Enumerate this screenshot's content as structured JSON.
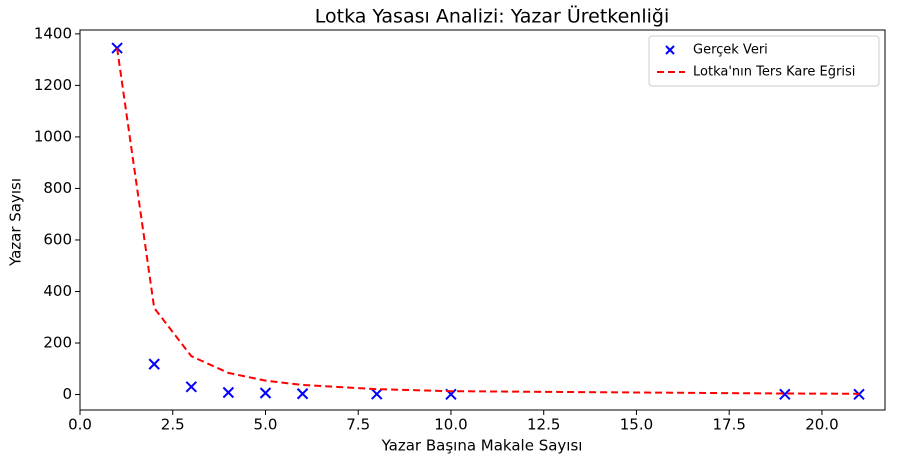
{
  "chart_data": {
    "type": "scatter",
    "title": "Lotka Yasası Analizi: Yazar Üretkenliği",
    "xlabel": "Yazar Başına Makale Sayısı",
    "ylabel": "Yazar Sayısı",
    "x": [
      1,
      2,
      3,
      4,
      5,
      6,
      8,
      10,
      19,
      21
    ],
    "series": [
      {
        "name": "Gerçek Veri",
        "type": "scatter",
        "color": "#0000ff",
        "values": [
          1345,
          118,
          30,
          8,
          6,
          3,
          2,
          1,
          1,
          1
        ]
      },
      {
        "name": "Lotka'nın Ters Kare Eğrisi",
        "type": "line",
        "color": "#ff0000",
        "dashed": true,
        "values": [
          1345,
          336,
          149,
          84,
          54,
          37,
          21,
          13,
          4,
          3
        ]
      }
    ],
    "xlim": [
      0,
      21.7
    ],
    "ylim": [
      -60,
      1415
    ],
    "xticks": [
      {
        "value": 0,
        "label": "0.0"
      },
      2.5,
      {
        "value": 5,
        "label": "5.0"
      },
      7.5,
      {
        "value": 10,
        "label": "10.0"
      },
      12.5,
      {
        "value": 15,
        "label": "15.0"
      },
      17.5,
      {
        "value": 20,
        "label": "20.0"
      }
    ],
    "yticks": [
      0,
      200,
      400,
      600,
      800,
      1000,
      1200,
      1400
    ],
    "grid": false,
    "legend": "upper right"
  }
}
